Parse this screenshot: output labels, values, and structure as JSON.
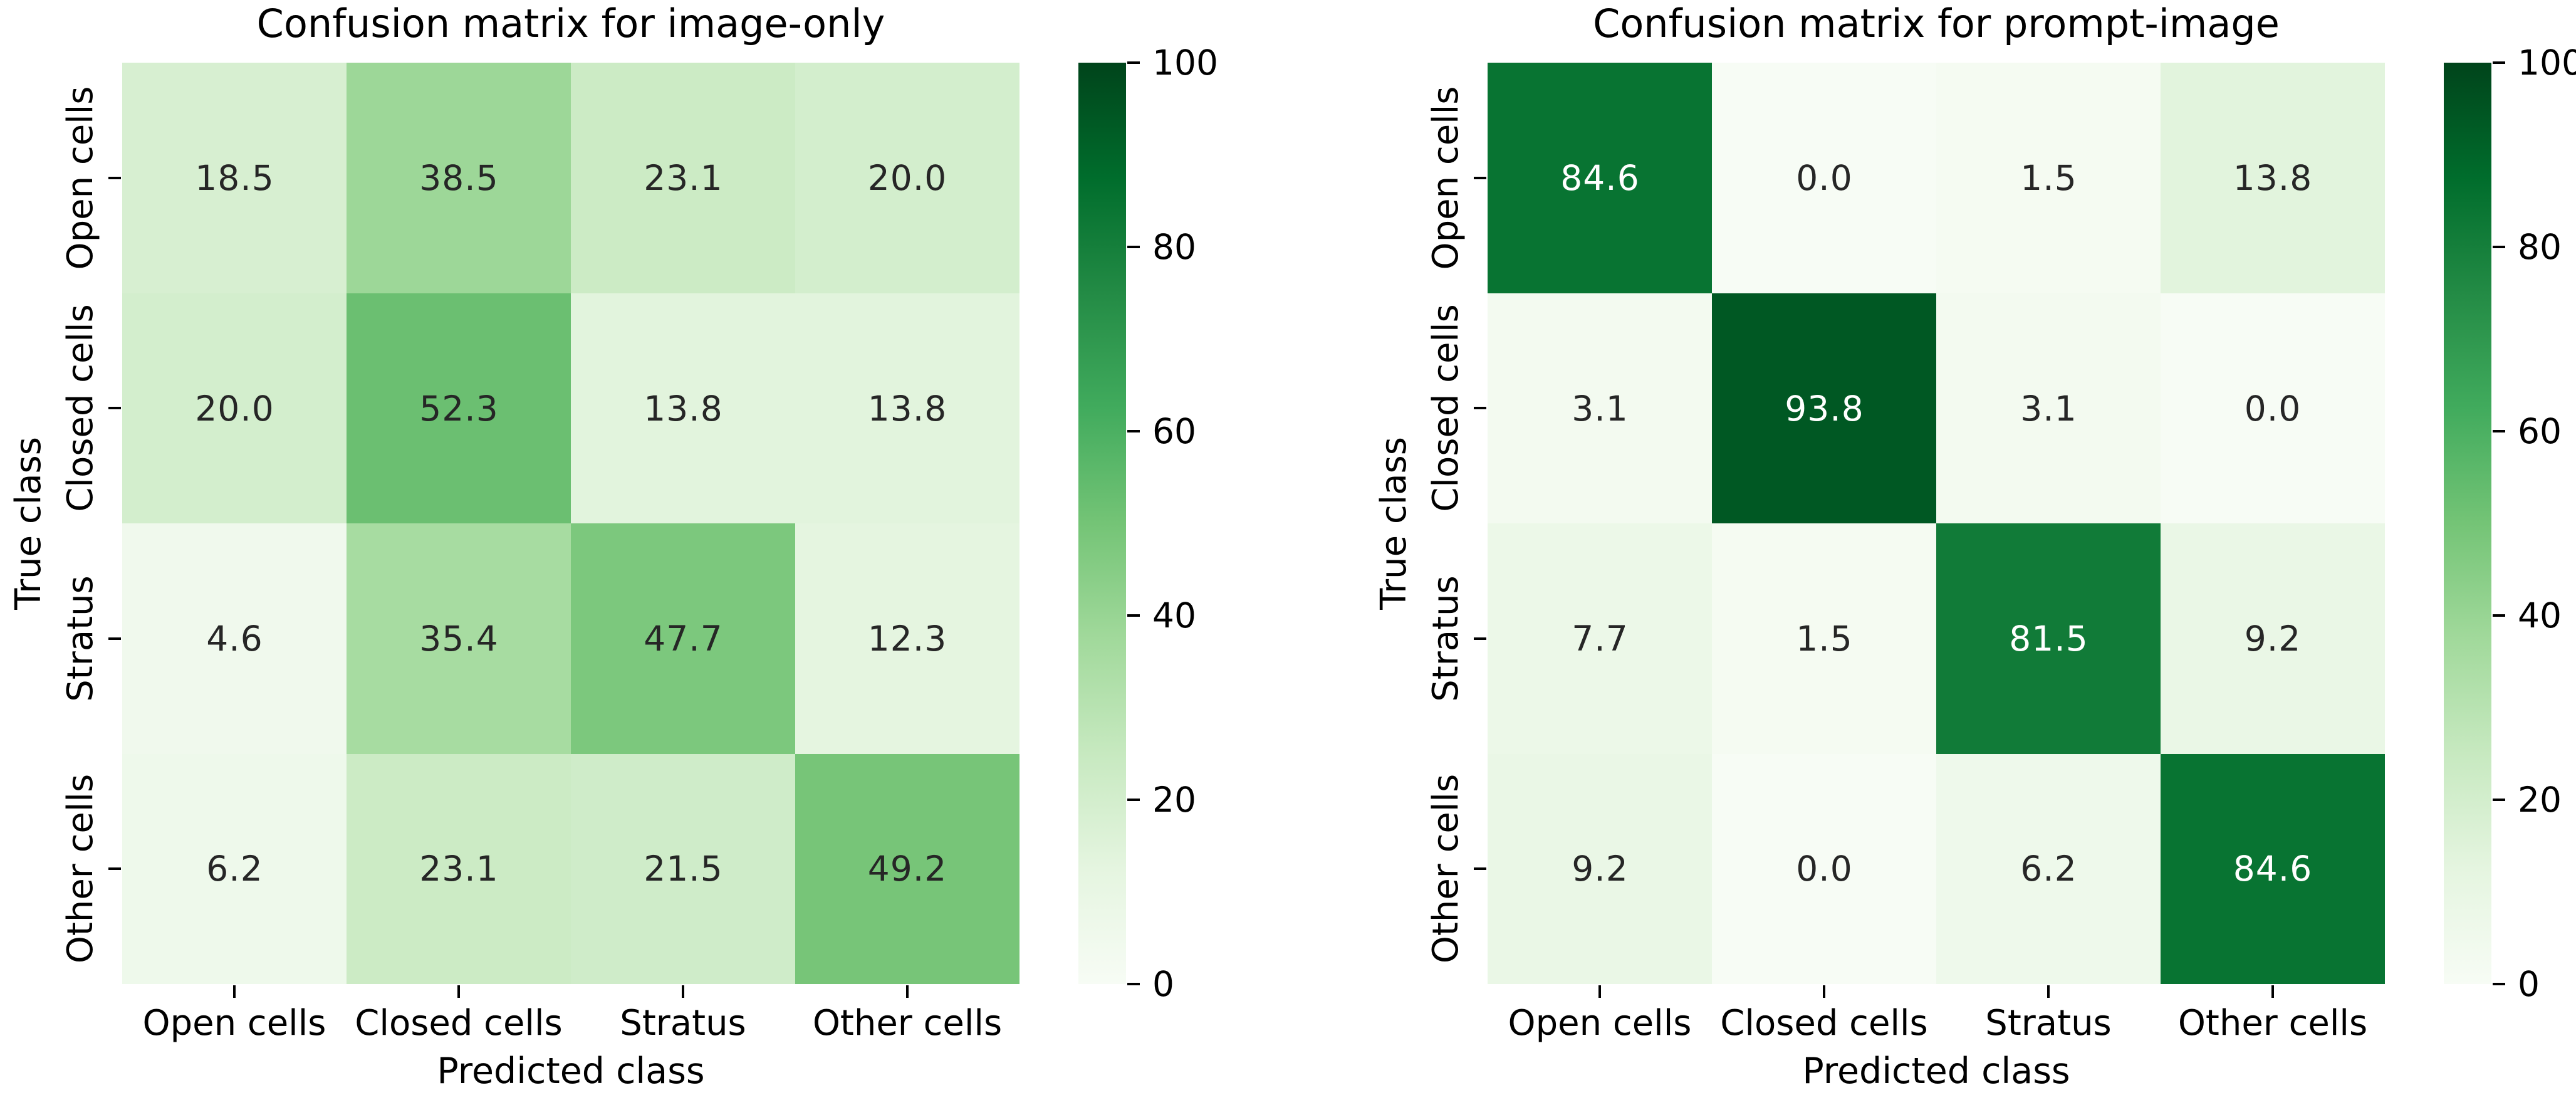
{
  "chart_data": [
    {
      "type": "heatmap",
      "title": "Confusion matrix for image-only",
      "xlabel": "Predicted class",
      "ylabel": "True class",
      "x_categories": [
        "Open cells",
        "Closed cells",
        "Stratus",
        "Other cells"
      ],
      "y_categories": [
        "Open cells",
        "Closed cells",
        "Stratus",
        "Other cells"
      ],
      "values": [
        [
          18.5,
          38.5,
          23.1,
          20.0
        ],
        [
          20.0,
          52.3,
          13.8,
          13.8
        ],
        [
          4.6,
          35.4,
          47.7,
          12.3
        ],
        [
          6.2,
          23.1,
          21.5,
          49.2
        ]
      ],
      "value_decimals": 1,
      "vmin": 0,
      "vmax": 100,
      "colorbar_ticks": [
        0,
        20,
        40,
        60,
        80,
        100
      ],
      "colormap": "Greens",
      "legend_position": "right-colorbar",
      "grid": false
    },
    {
      "type": "heatmap",
      "title": "Confusion matrix for prompt-image",
      "xlabel": "Predicted class",
      "ylabel": "True class",
      "x_categories": [
        "Open cells",
        "Closed cells",
        "Stratus",
        "Other cells"
      ],
      "y_categories": [
        "Open cells",
        "Closed cells",
        "Stratus",
        "Other cells"
      ],
      "values": [
        [
          84.6,
          0.0,
          1.5,
          13.8
        ],
        [
          3.1,
          93.8,
          3.1,
          0.0
        ],
        [
          7.7,
          1.5,
          81.5,
          9.2
        ],
        [
          9.2,
          0.0,
          6.2,
          84.6
        ]
      ],
      "value_decimals": 1,
      "vmin": 0,
      "vmax": 100,
      "colorbar_ticks": [
        0,
        20,
        40,
        60,
        80,
        100
      ],
      "colormap": "Greens",
      "legend_position": "right-colorbar",
      "grid": false
    }
  ],
  "colors": {
    "greens_stops": [
      "#f7fcf5",
      "#e5f5e0",
      "#c7e9c0",
      "#a1d99b",
      "#74c476",
      "#41ab5d",
      "#238b45",
      "#006d2c",
      "#00441b"
    ],
    "annotation_dark": "#262626",
    "annotation_light": "#ffffff",
    "axis_text": "#000000",
    "background": "#ffffff"
  }
}
